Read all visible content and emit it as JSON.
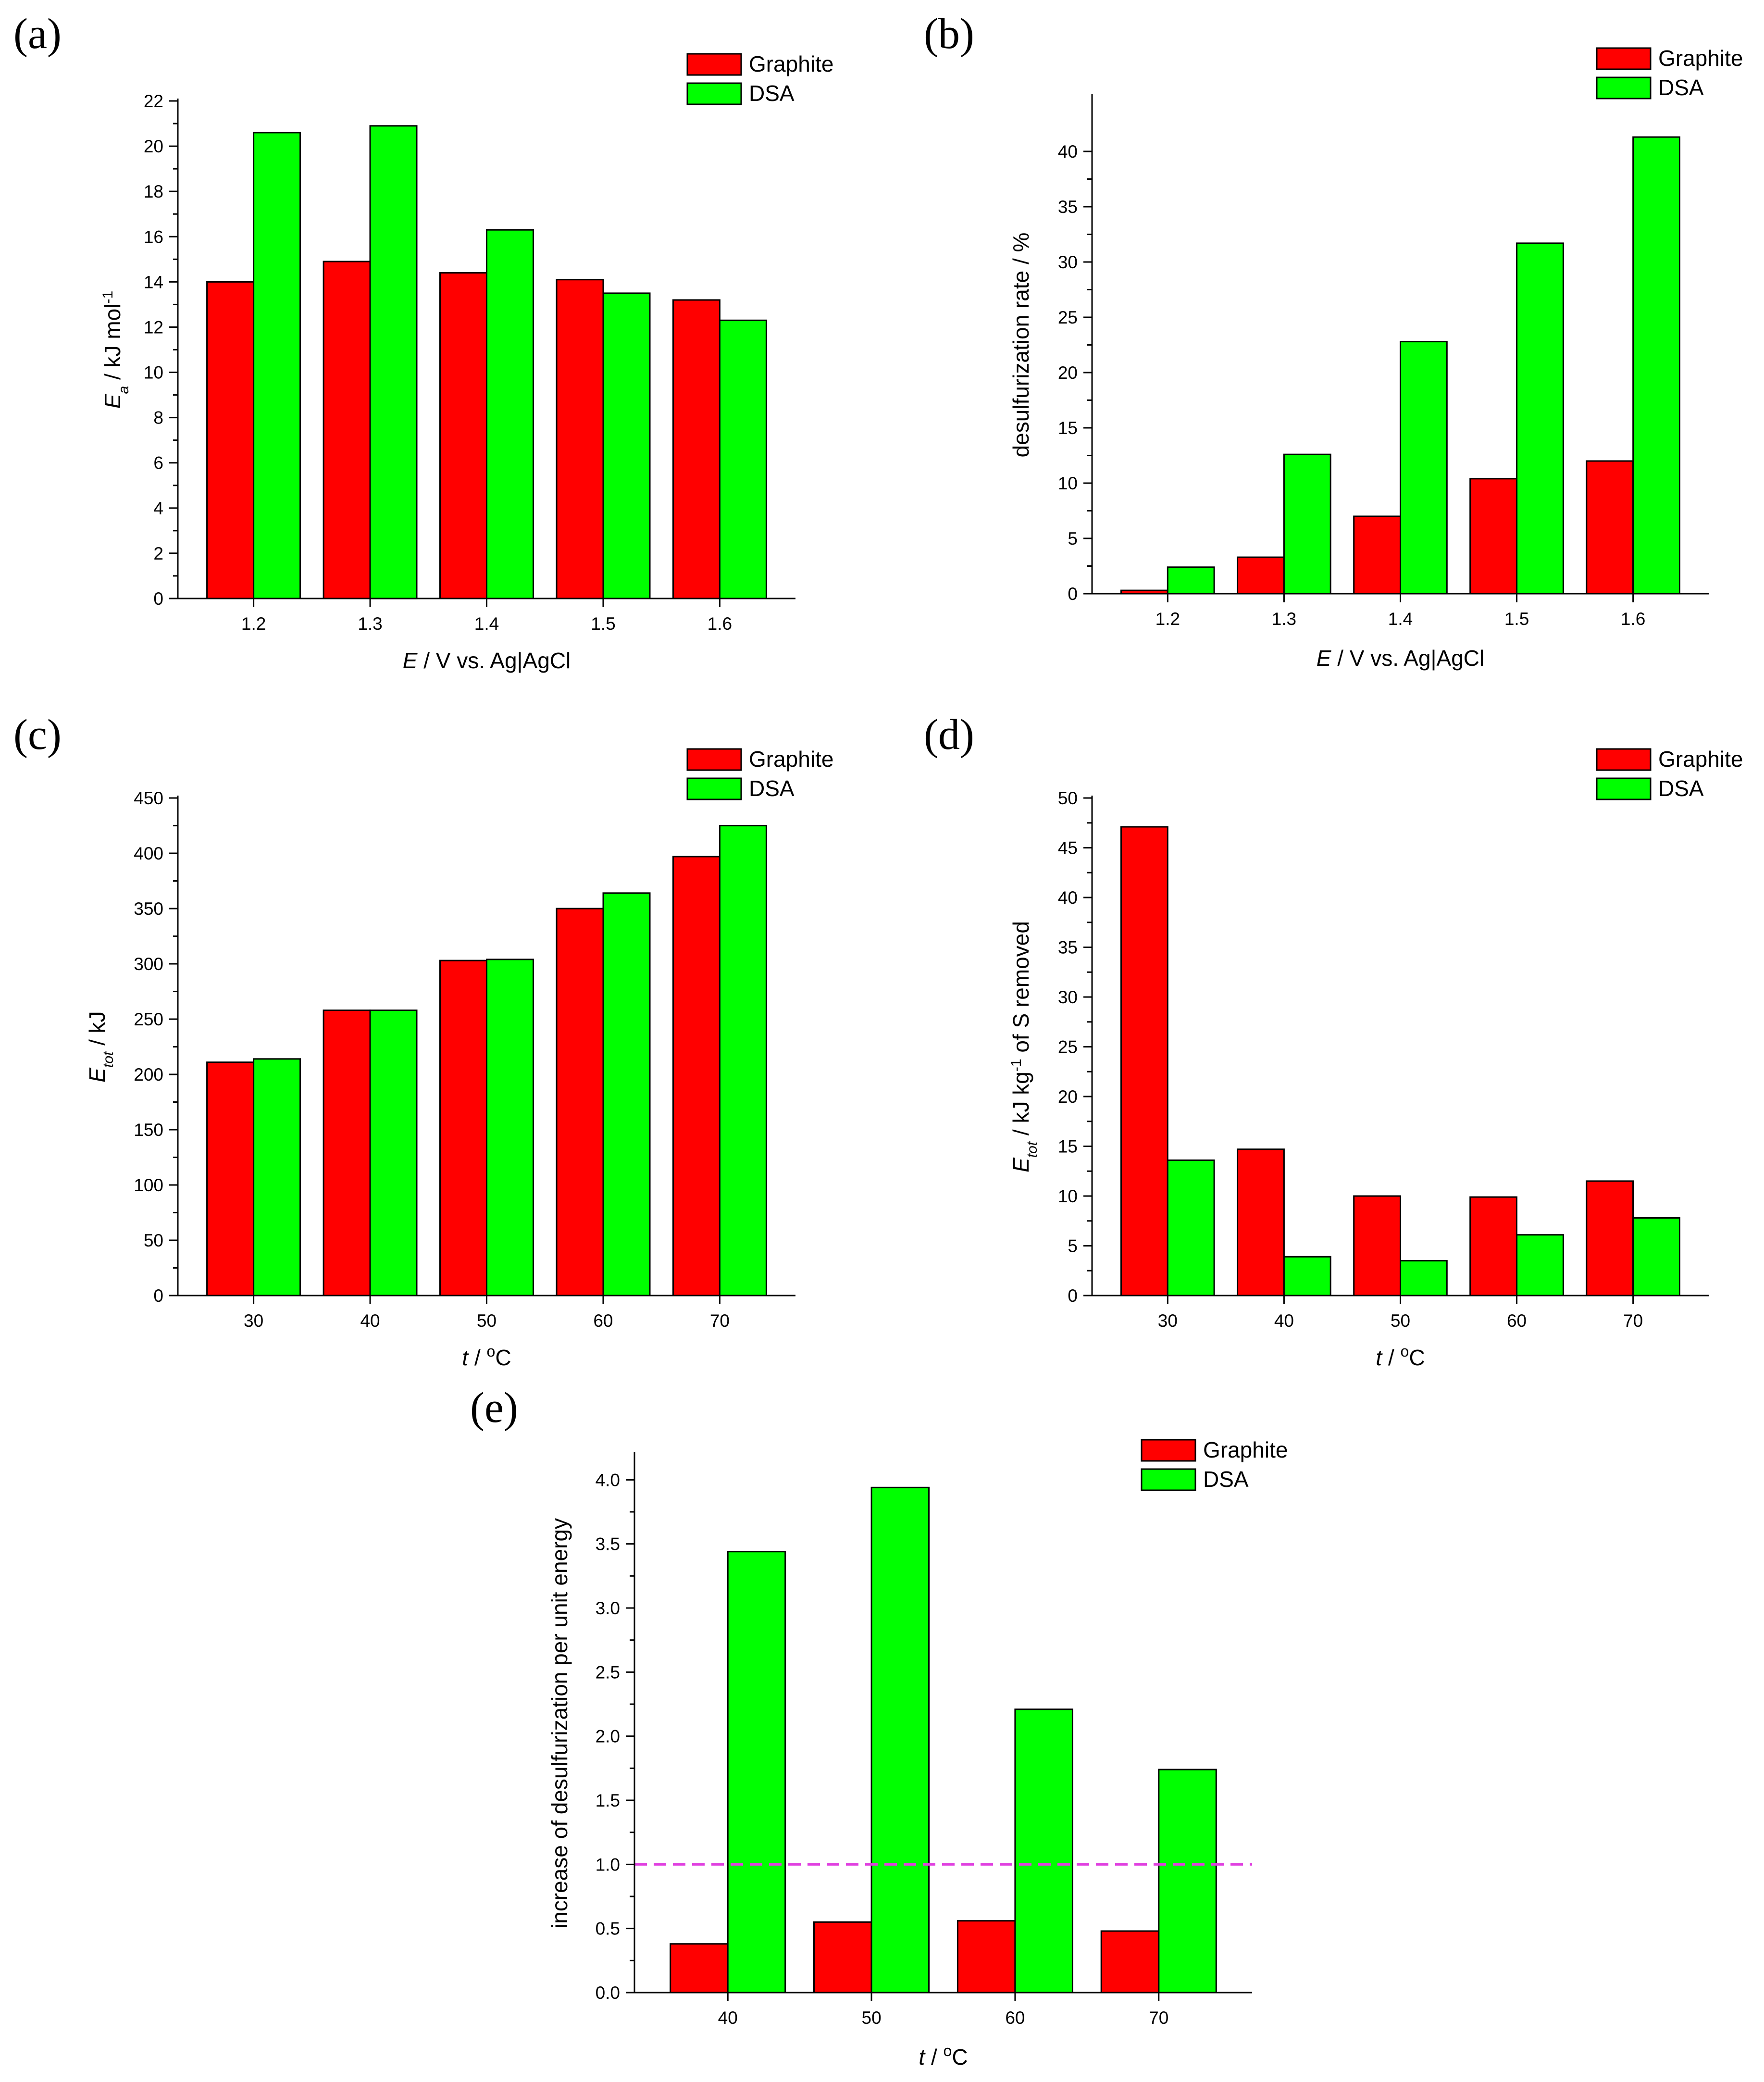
{
  "colors": {
    "graphite": "#ff0000",
    "dsa": "#00ff00",
    "reference_line": "#e040e0"
  },
  "legend": {
    "graphite": "Graphite",
    "dsa": "DSA"
  },
  "chart_data": [
    {
      "panel": "(a)",
      "type": "bar",
      "categories": [
        "1.2",
        "1.3",
        "1.4",
        "1.5",
        "1.6"
      ],
      "series": [
        {
          "name": "Graphite",
          "values": [
            14.0,
            14.9,
            14.4,
            14.1,
            13.2
          ]
        },
        {
          "name": "DSA",
          "values": [
            20.6,
            20.9,
            16.3,
            13.5,
            12.3
          ]
        }
      ],
      "ylim": [
        0,
        22
      ],
      "yticks": [
        "0",
        "2",
        "4",
        "6",
        "8",
        "10",
        "12",
        "14",
        "16",
        "18",
        "20",
        "22"
      ],
      "ytick_values": [
        0,
        2,
        4,
        6,
        8,
        10,
        12,
        14,
        16,
        18,
        20,
        22
      ],
      "ylabel": {
        "main": "E",
        "sub": "a",
        "rest": " / kJ mol",
        "sup": "-1",
        "tail": ""
      },
      "xlabel": {
        "italic": "E",
        "rest": " / V vs. Ag|AgCl",
        "sup": "",
        "tail": ""
      }
    },
    {
      "panel": "(b)",
      "type": "bar",
      "categories": [
        "1.2",
        "1.3",
        "1.4",
        "1.5",
        "1.6"
      ],
      "series": [
        {
          "name": "Graphite",
          "values": [
            0.3,
            3.3,
            7.0,
            10.4,
            12.0
          ]
        },
        {
          "name": "DSA",
          "values": [
            2.4,
            12.6,
            22.8,
            31.7,
            41.3
          ]
        }
      ],
      "ylim": [
        0,
        45
      ],
      "yticks": [
        "0",
        "5",
        "10",
        "15",
        "20",
        "25",
        "30",
        "35",
        "40"
      ],
      "ytick_values": [
        0,
        5,
        10,
        15,
        20,
        25,
        30,
        35,
        40
      ],
      "ylabel": {
        "main": "desulfurization rate / %",
        "sub": "",
        "rest": "",
        "sup": "",
        "tail": ""
      },
      "xlabel": {
        "italic": "E",
        "rest": " / V vs. Ag|AgCl",
        "sup": "",
        "tail": ""
      }
    },
    {
      "panel": "(c)",
      "type": "bar",
      "categories": [
        "30",
        "40",
        "50",
        "60",
        "70"
      ],
      "series": [
        {
          "name": "Graphite",
          "values": [
            211,
            258,
            303,
            350,
            397
          ]
        },
        {
          "name": "DSA",
          "values": [
            214,
            258,
            304,
            364,
            425
          ]
        }
      ],
      "ylim": [
        0,
        450
      ],
      "yticks": [
        "0",
        "50",
        "100",
        "150",
        "200",
        "250",
        "300",
        "350",
        "400",
        "450"
      ],
      "ytick_values": [
        0,
        50,
        100,
        150,
        200,
        250,
        300,
        350,
        400,
        450
      ],
      "ylabel": {
        "main": "E",
        "sub": "tot",
        "rest": " / kJ",
        "sup": "",
        "tail": ""
      },
      "xlabel": {
        "italic": "t",
        "rest": " / ",
        "sup": "o",
        "tail": "C"
      }
    },
    {
      "panel": "(d)",
      "type": "bar",
      "categories": [
        "30",
        "40",
        "50",
        "60",
        "70"
      ],
      "series": [
        {
          "name": "Graphite",
          "values": [
            47.1,
            14.7,
            10.0,
            9.9,
            11.5
          ]
        },
        {
          "name": "DSA",
          "values": [
            13.6,
            3.9,
            3.5,
            6.1,
            7.8
          ]
        }
      ],
      "ylim": [
        0,
        50
      ],
      "yticks": [
        "0",
        "5",
        "10",
        "15",
        "20",
        "25",
        "30",
        "35",
        "40",
        "45",
        "50"
      ],
      "ytick_values": [
        0,
        5,
        10,
        15,
        20,
        25,
        30,
        35,
        40,
        45,
        50
      ],
      "ylabel": {
        "main": "E",
        "sub": "tot",
        "rest": " / kJ kg",
        "sup": "-1",
        "tail": " of S removed"
      },
      "xlabel": {
        "italic": "t",
        "rest": " / ",
        "sup": "o",
        "tail": "C"
      }
    },
    {
      "panel": "(e)",
      "type": "bar",
      "categories": [
        "40",
        "50",
        "60",
        "70"
      ],
      "series": [
        {
          "name": "Graphite",
          "values": [
            0.38,
            0.55,
            0.56,
            0.48
          ]
        },
        {
          "name": "DSA",
          "values": [
            3.44,
            3.94,
            2.21,
            1.74
          ]
        }
      ],
      "ylim": [
        0,
        4.2
      ],
      "yticks": [
        "0.0",
        "0.5",
        "1.0",
        "1.5",
        "2.0",
        "2.5",
        "3.0",
        "3.5",
        "4.0"
      ],
      "ytick_values": [
        0,
        0.5,
        1.0,
        1.5,
        2.0,
        2.5,
        3.0,
        3.5,
        4.0
      ],
      "reference_line": 1.0,
      "ylabel": {
        "main": "increase of desulfurization per unit energy",
        "sub": "",
        "rest": "",
        "sup": "",
        "tail": ""
      },
      "xlabel": {
        "italic": "t",
        "rest": " / ",
        "sup": "o",
        "tail": "C"
      }
    }
  ]
}
